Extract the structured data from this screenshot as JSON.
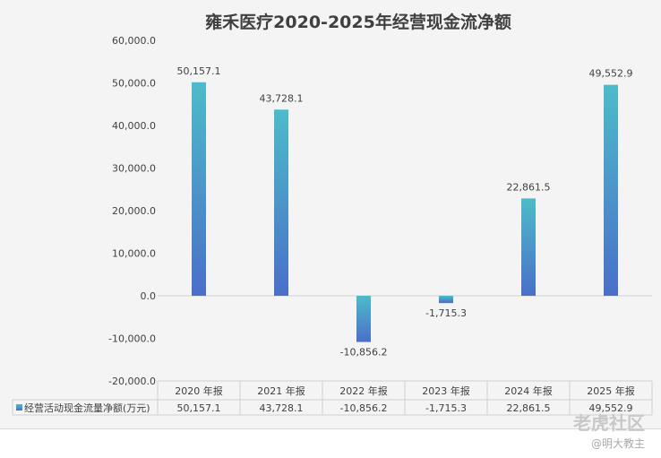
{
  "chart_data": {
    "type": "bar",
    "title": "雍禾医疗2020-2025年经营现金流净额",
    "categories": [
      "2020 年报",
      "2021 年报",
      "2022 年报",
      "2023 年报",
      "2024 年报",
      "2025 年报"
    ],
    "series": [
      {
        "name": "经营活动现金流量净额(万元)",
        "values": [
          50157.1,
          43728.1,
          -10856.2,
          -1715.3,
          22861.5,
          49552.9
        ]
      }
    ],
    "data_labels": [
      "50,157.1",
      "43,728.1",
      "-10,856.2",
      "-1,715.3",
      "22,861.5",
      "49,552.9"
    ],
    "ylim": [
      -20000,
      60000
    ],
    "yticks": [
      "60,000.0",
      "50,000.0",
      "40,000.0",
      "30,000.0",
      "20,000.0",
      "10,000.0",
      "0.0",
      "-10,000.0",
      "-20,000.0"
    ],
    "ytick_values": [
      60000,
      50000,
      40000,
      30000,
      20000,
      10000,
      0,
      -10000,
      -20000
    ],
    "grid": false,
    "legend": "data-table",
    "colors": {
      "bar_top": "#4dbbc9",
      "bar_bottom": "#4a6fc9"
    }
  },
  "watermark": {
    "brand": "老虎社区",
    "author": "@明大教主"
  }
}
